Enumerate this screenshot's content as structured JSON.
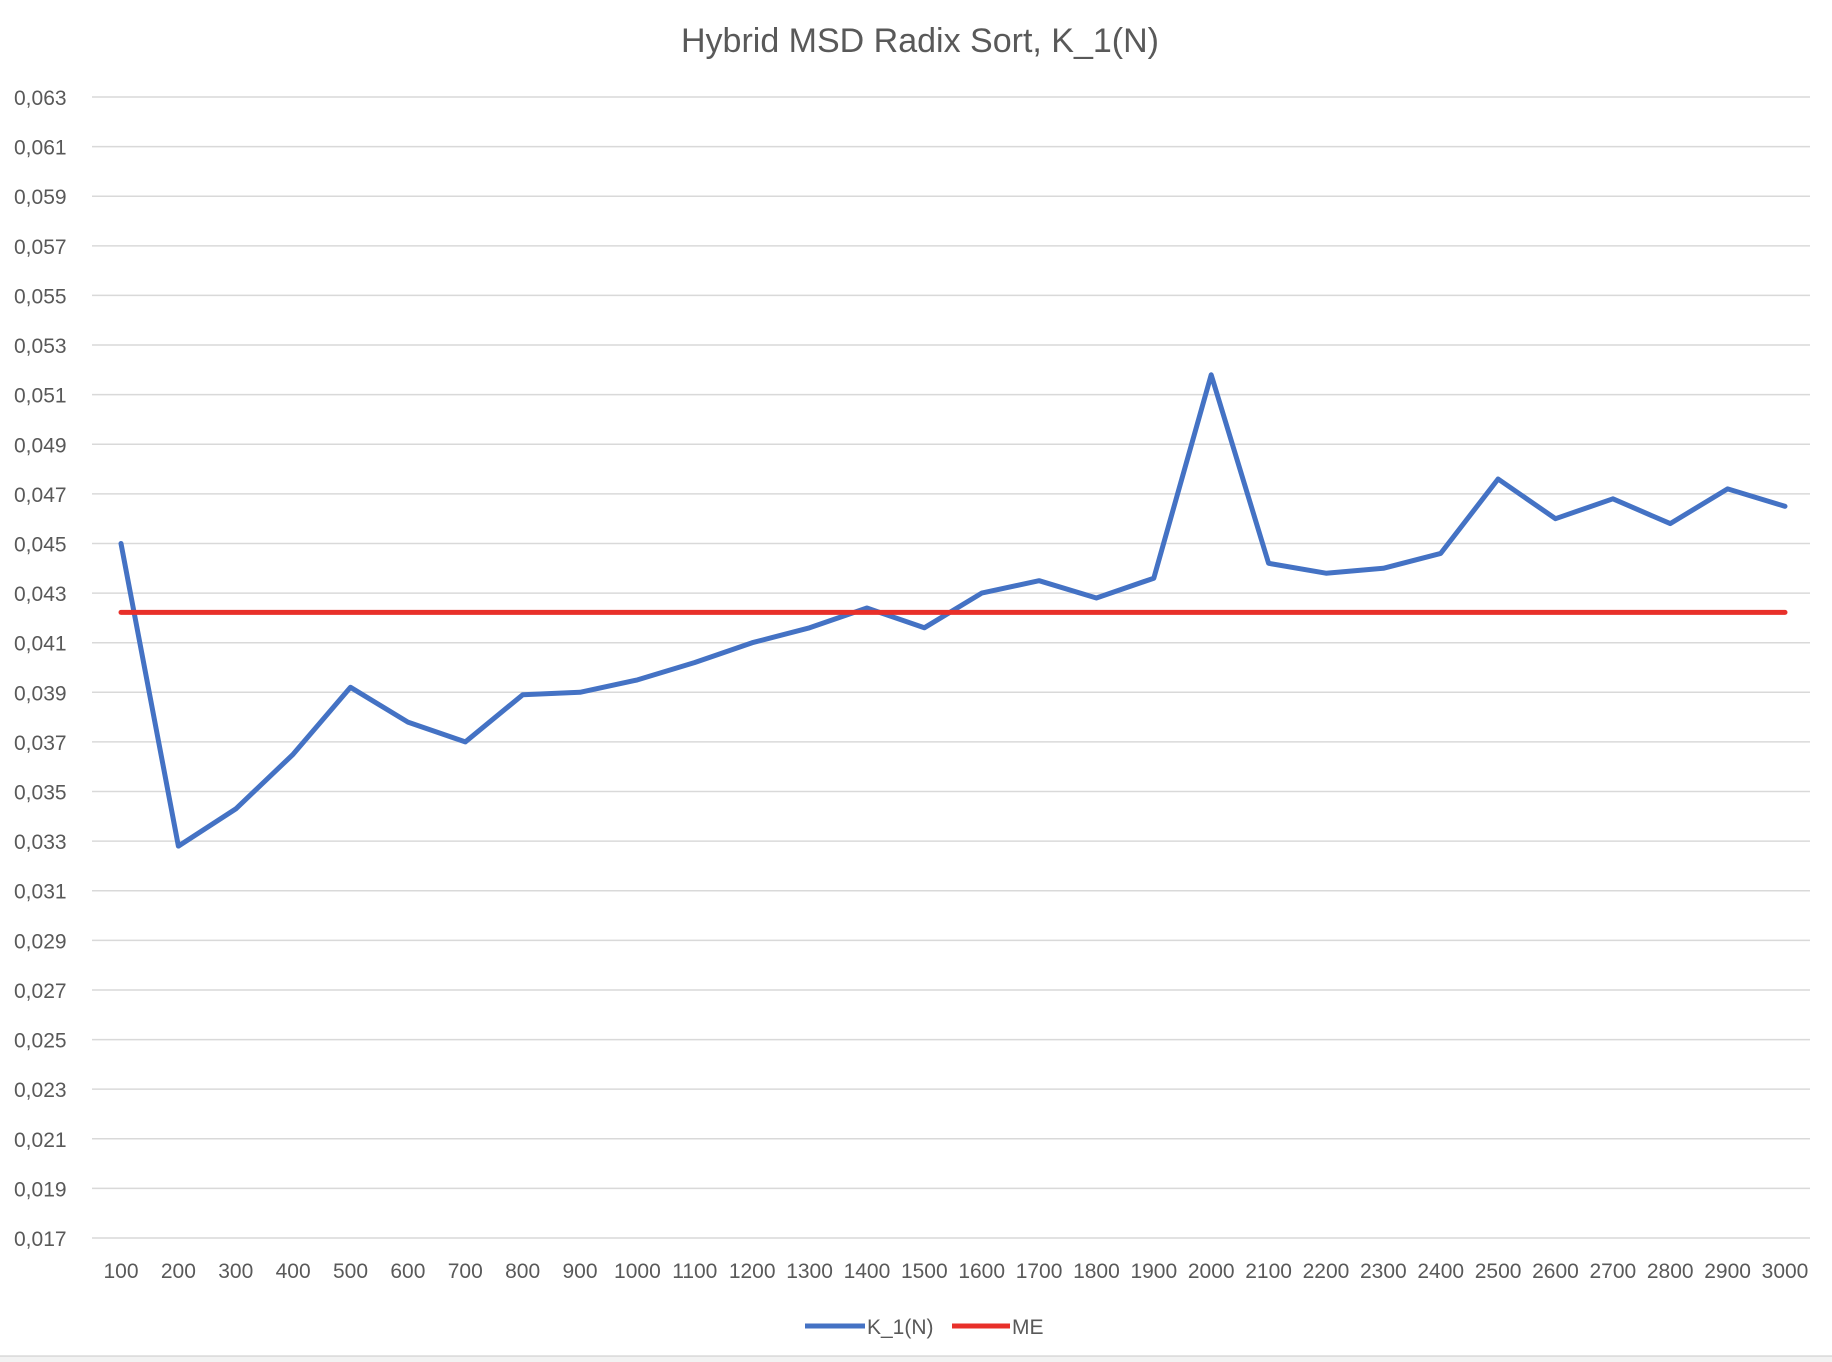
{
  "chart_data": {
    "type": "line",
    "title": "Hybrid MSD Radix Sort, K_1(N)",
    "xlabel": "",
    "ylabel": "",
    "categories": [
      "100",
      "200",
      "300",
      "400",
      "500",
      "600",
      "700",
      "800",
      "900",
      "1000",
      "1100",
      "1200",
      "1300",
      "1400",
      "1500",
      "1600",
      "1700",
      "1800",
      "1900",
      "2000",
      "2100",
      "2200",
      "2300",
      "2400",
      "2500",
      "2600",
      "2700",
      "2800",
      "2900",
      "3000"
    ],
    "series": [
      {
        "name": "K_1(N)",
        "color": "#4472c4",
        "values": [
          0.045,
          0.0328,
          0.0343,
          0.0365,
          0.0392,
          0.0378,
          0.037,
          0.0389,
          0.039,
          0.0395,
          0.0402,
          0.041,
          0.0416,
          0.0424,
          0.0416,
          0.043,
          0.0435,
          0.0428,
          0.0436,
          0.0518,
          0.0442,
          0.0438,
          0.044,
          0.0446,
          0.0476,
          0.046,
          0.0468,
          0.0458,
          0.0472,
          0.0465
        ]
      },
      {
        "name": "ME",
        "color": "#e8302a",
        "values": [
          0.04222,
          0.04222,
          0.04222,
          0.04222,
          0.04222,
          0.04222,
          0.04222,
          0.04222,
          0.04222,
          0.04222,
          0.04222,
          0.04222,
          0.04222,
          0.04222,
          0.04222,
          0.04222,
          0.04222,
          0.04222,
          0.04222,
          0.04222,
          0.04222,
          0.04222,
          0.04222,
          0.04222,
          0.04222,
          0.04222,
          0.04222,
          0.04222,
          0.04222,
          0.04222
        ]
      }
    ],
    "ylim": [
      0.017,
      0.063
    ],
    "yticks": [
      "0,017",
      "0,019",
      "0,021",
      "0,023",
      "0,025",
      "0,027",
      "0,029",
      "0,031",
      "0,033",
      "0,035",
      "0,037",
      "0,039",
      "0,041",
      "0,043",
      "0,045",
      "0,047",
      "0,049",
      "0,051",
      "0,053",
      "0,055",
      "0,057",
      "0,059",
      "0,061",
      "0,063"
    ],
    "grid": true,
    "legend_position": "bottom"
  }
}
